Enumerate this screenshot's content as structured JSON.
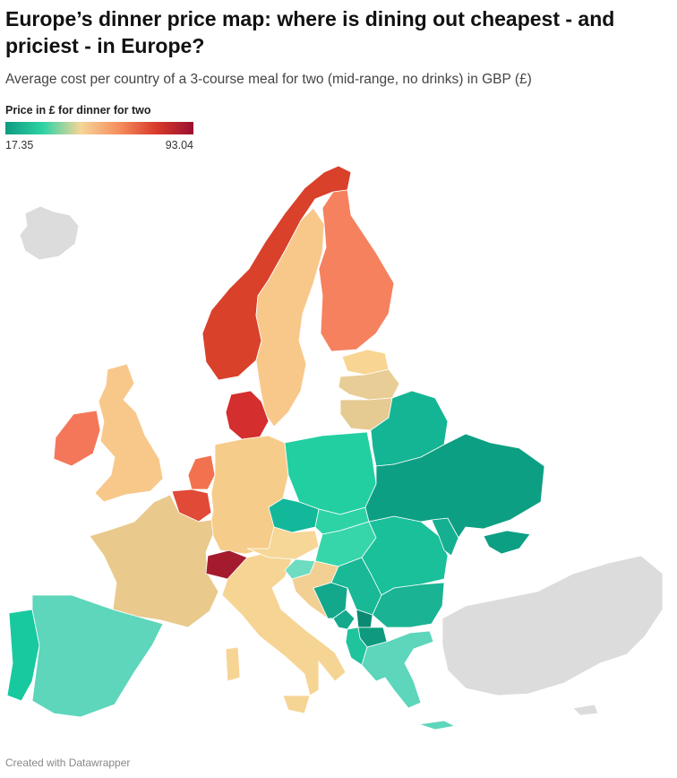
{
  "header": {
    "title": "Europe’s dinner price map: where is dining out cheapest - and priciest - in Europe?",
    "subtitle": "Average cost per country of a 3-course meal for two (mid-range, no drinks) in GBP (£)"
  },
  "legend": {
    "title": "Price in £ for dinner for two",
    "min": 17.35,
    "max": 93.04,
    "colors": [
      "#0e9b80",
      "#2dd3a5",
      "#f5d598",
      "#f6905f",
      "#d93b2b",
      "#9a1030"
    ]
  },
  "footer": "Created with Datawrapper"
}
